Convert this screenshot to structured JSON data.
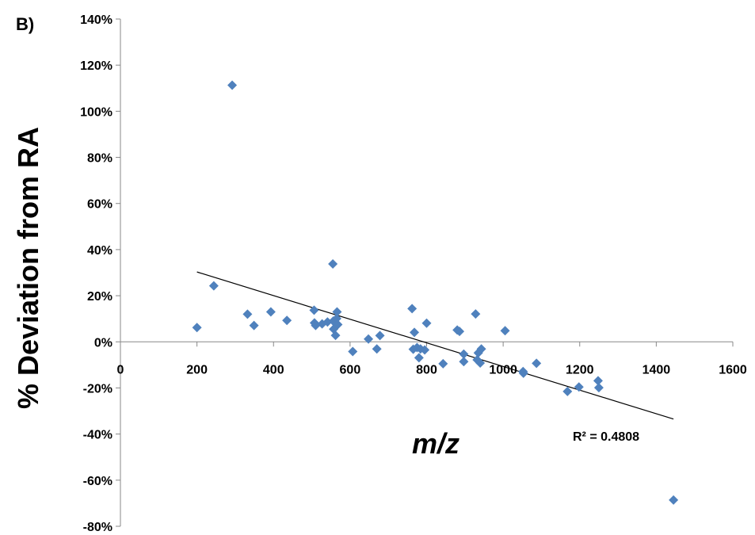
{
  "chart_data": {
    "type": "scatter",
    "panel_label": "B)",
    "title": "",
    "xlabel": "m/z",
    "ylabel": "% Deviation from RA",
    "xlim": [
      0,
      1600
    ],
    "ylim": [
      -80,
      140
    ],
    "x_ticks": [
      0,
      200,
      400,
      600,
      800,
      1000,
      1200,
      1400,
      1600
    ],
    "x_tick_labels": [
      "0",
      "200",
      "400",
      "600",
      "800",
      "1000",
      "1200",
      "1400",
      "1600"
    ],
    "y_ticks": [
      140,
      120,
      100,
      80,
      60,
      40,
      20,
      0,
      -20,
      -40,
      -60,
      -80
    ],
    "y_tick_labels": [
      "140%",
      "120%",
      "100%",
      "80%",
      "60%",
      "40%",
      "20%",
      "0%",
      "-20%",
      "-40%",
      "-60%",
      "-80%"
    ],
    "grid": false,
    "legend": "none",
    "marker_color": "#4F81BD",
    "trendline": {
      "x": [
        200,
        1445
      ],
      "y": [
        30.3,
        -33.5
      ],
      "color": "#000000"
    },
    "r_squared_label": "R² = 0.4808",
    "series": [
      {
        "points": [
          [
            200,
            6.2
          ],
          [
            244,
            24.3
          ],
          [
            292,
            111.3
          ],
          [
            332,
            12.0
          ],
          [
            349,
            7.1
          ],
          [
            393,
            13.0
          ],
          [
            435,
            9.3
          ],
          [
            506,
            13.7
          ],
          [
            507,
            8.2
          ],
          [
            510,
            7.1
          ],
          [
            527,
            7.8
          ],
          [
            541,
            8.6
          ],
          [
            555,
            33.8
          ],
          [
            556,
            9.0
          ],
          [
            557,
            5.5
          ],
          [
            562,
            2.8
          ],
          [
            565,
            10.1
          ],
          [
            566,
            13.0
          ],
          [
            568,
            7.5
          ],
          [
            607,
            -4.2
          ],
          [
            648,
            1.2
          ],
          [
            670,
            -3.1
          ],
          [
            678,
            2.7
          ],
          [
            762,
            14.4
          ],
          [
            765,
            -3.2
          ],
          [
            768,
            4.1
          ],
          [
            775,
            -2.5
          ],
          [
            780,
            -6.9
          ],
          [
            784,
            -3.1
          ],
          [
            795,
            -3.5
          ],
          [
            800,
            8.1
          ],
          [
            843,
            -9.5
          ],
          [
            880,
            5.1
          ],
          [
            886,
            4.5
          ],
          [
            897,
            -5.3
          ],
          [
            897,
            -8.6
          ],
          [
            928,
            12.1
          ],
          [
            932,
            -7.8
          ],
          [
            935,
            -4.8
          ],
          [
            940,
            -9.2
          ],
          [
            943,
            -3.1
          ],
          [
            1005,
            4.8
          ],
          [
            1052,
            -12.9
          ],
          [
            1053,
            -13.6
          ],
          [
            1087,
            -9.3
          ],
          [
            1168,
            -21.5
          ],
          [
            1198,
            -19.6
          ],
          [
            1248,
            -16.9
          ],
          [
            1250,
            -19.9
          ],
          [
            1445,
            -68.6
          ]
        ]
      }
    ]
  }
}
